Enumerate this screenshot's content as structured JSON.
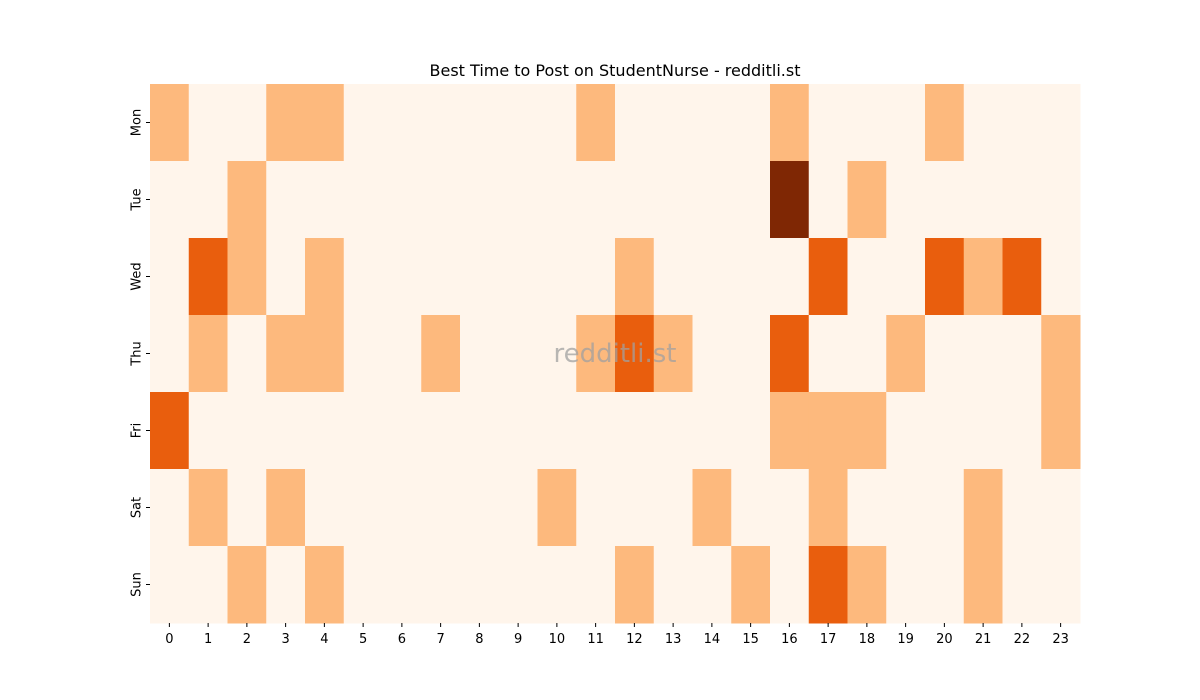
{
  "chart_data": {
    "type": "heatmap",
    "title": "Best Time to Post on StudentNurse - redditli.st",
    "watermark": "redditli.st",
    "x_categories": [
      "0",
      "1",
      "2",
      "3",
      "4",
      "5",
      "6",
      "7",
      "8",
      "9",
      "10",
      "11",
      "12",
      "13",
      "14",
      "15",
      "16",
      "17",
      "18",
      "19",
      "20",
      "21",
      "22",
      "23"
    ],
    "y_categories": [
      "Mon",
      "Tue",
      "Wed",
      "Thu",
      "Fri",
      "Sat",
      "Sun"
    ],
    "values": [
      [
        1,
        0,
        0,
        1,
        1,
        0,
        0,
        0,
        0,
        0,
        0,
        1,
        0,
        0,
        0,
        0,
        1,
        0,
        0,
        0,
        1,
        0,
        0,
        0
      ],
      [
        0,
        0,
        1,
        0,
        0,
        0,
        0,
        0,
        0,
        0,
        0,
        0,
        0,
        0,
        0,
        0,
        3,
        0,
        1,
        0,
        0,
        0,
        0,
        0
      ],
      [
        0,
        2,
        1,
        0,
        1,
        0,
        0,
        0,
        0,
        0,
        0,
        0,
        1,
        0,
        0,
        0,
        0,
        2,
        0,
        0,
        2,
        1,
        2,
        0
      ],
      [
        0,
        1,
        0,
        1,
        1,
        0,
        0,
        1,
        0,
        0,
        0,
        1,
        2,
        1,
        0,
        0,
        2,
        0,
        0,
        1,
        0,
        0,
        0,
        1
      ],
      [
        2,
        0,
        0,
        0,
        0,
        0,
        0,
        0,
        0,
        0,
        0,
        0,
        0,
        0,
        0,
        0,
        1,
        1,
        1,
        0,
        0,
        0,
        0,
        1
      ],
      [
        0,
        1,
        0,
        1,
        0,
        0,
        0,
        0,
        0,
        0,
        1,
        0,
        0,
        0,
        1,
        0,
        0,
        1,
        0,
        0,
        0,
        1,
        0,
        0
      ],
      [
        0,
        0,
        1,
        0,
        1,
        0,
        0,
        0,
        0,
        0,
        0,
        0,
        1,
        0,
        0,
        1,
        0,
        2,
        1,
        0,
        0,
        1,
        0,
        0
      ]
    ],
    "colormap": "Oranges",
    "level_colors": [
      "#fff5eb",
      "#fdb97d",
      "#e95e0d",
      "#7f2704"
    ],
    "grid": false,
    "legend": "none"
  }
}
